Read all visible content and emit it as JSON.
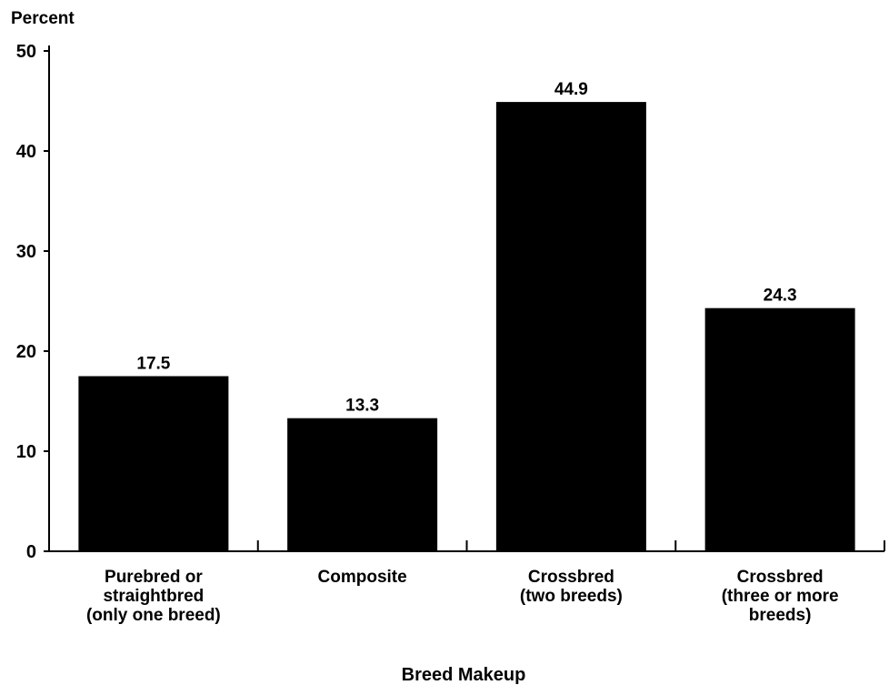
{
  "chart_data": {
    "type": "bar",
    "ylabel": "Percent",
    "xlabel": "Breed Makeup",
    "ylim": [
      0,
      50
    ],
    "yticks": [
      0,
      10,
      20,
      30,
      40,
      50
    ],
    "grid": false,
    "legend": "none",
    "bar_color": "#000000",
    "categories": [
      [
        "Purebred or",
        "straightbred",
        "(only one breed)"
      ],
      [
        "Composite"
      ],
      [
        "Crossbred",
        "(two breeds)"
      ],
      [
        "Crossbred",
        "(three or more",
        "breeds)"
      ]
    ],
    "values": [
      17.5,
      13.3,
      44.9,
      24.3
    ],
    "value_labels": [
      "17.5",
      "13.3",
      "44.9",
      "24.3"
    ]
  }
}
